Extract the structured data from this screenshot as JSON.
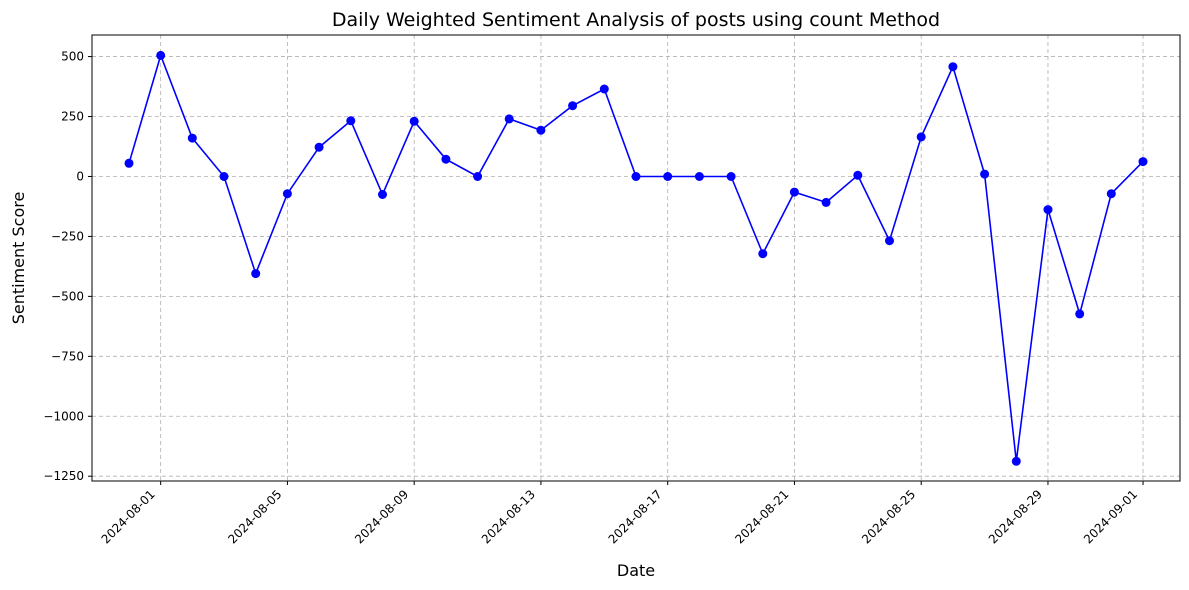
{
  "chart_data": {
    "type": "line",
    "title": "Daily Weighted Sentiment Analysis of posts using count Method",
    "xlabel": "Date",
    "ylabel": "Sentiment Score",
    "ylim": [
      -1270,
      590
    ],
    "xlim": [
      "2024-07-29T20:00",
      "2024-09-02T04:00"
    ],
    "grid": true,
    "line_color": "#0000ff",
    "marker": "circle",
    "x_ticks": [
      "2024-08-01",
      "2024-08-05",
      "2024-08-09",
      "2024-08-13",
      "2024-08-17",
      "2024-08-21",
      "2024-08-25",
      "2024-08-29",
      "2024-09-01"
    ],
    "y_ticks": [
      500,
      250,
      0,
      -250,
      -500,
      -750,
      -1000,
      -1250
    ],
    "y_tick_labels": [
      "500",
      "250",
      "0",
      "−250",
      "−500",
      "−750",
      "−1000",
      "−1250"
    ],
    "series": [
      {
        "x": [
          "2024-07-31",
          "2024-08-01",
          "2024-08-02",
          "2024-08-03",
          "2024-08-04",
          "2024-08-05",
          "2024-08-06",
          "2024-08-07",
          "2024-08-08",
          "2024-08-09",
          "2024-08-10",
          "2024-08-11",
          "2024-08-12",
          "2024-08-13",
          "2024-08-14",
          "2024-08-15",
          "2024-08-16",
          "2024-08-17",
          "2024-08-18",
          "2024-08-19",
          "2024-08-20",
          "2024-08-21",
          "2024-08-22",
          "2024-08-23",
          "2024-08-24",
          "2024-08-25",
          "2024-08-26",
          "2024-08-27",
          "2024-08-28",
          "2024-08-29",
          "2024-08-30",
          "2024-08-31",
          "2024-09-01"
        ],
        "y": [
          55,
          505,
          160,
          0,
          -405,
          -72,
          122,
          232,
          -75,
          230,
          72,
          0,
          240,
          193,
          295,
          365,
          0,
          0,
          0,
          0,
          -322,
          -65,
          -108,
          5,
          -268,
          165,
          458,
          10,
          -1188,
          -138,
          -573,
          -72,
          62
        ]
      }
    ]
  }
}
